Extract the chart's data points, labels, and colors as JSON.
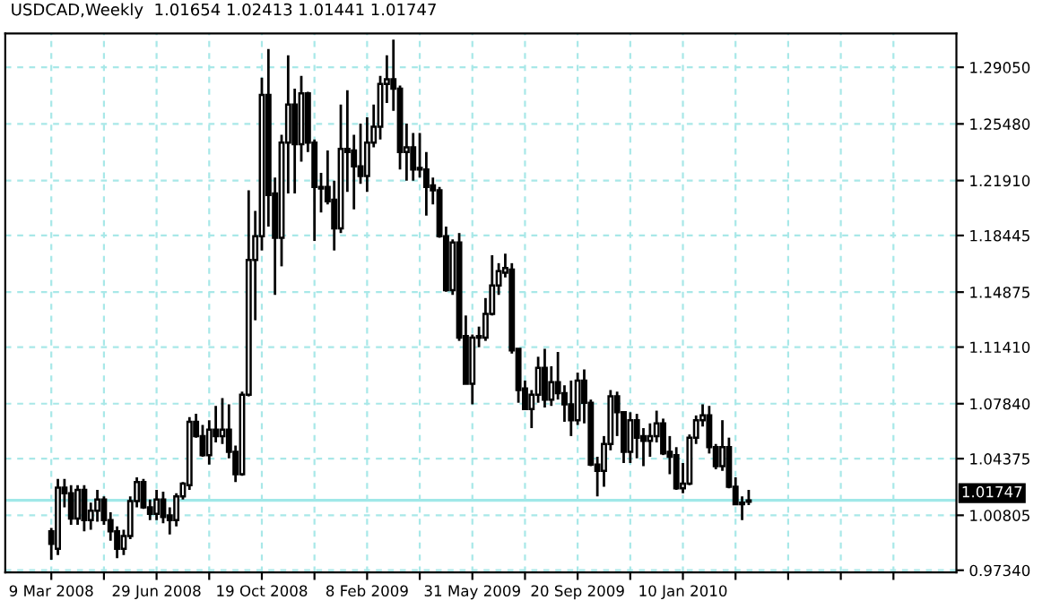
{
  "chart_data": {
    "type": "candlestick",
    "title": "USDCAD,Weekly  1.01654 1.02413 1.01441 1.01747",
    "color": "#000000",
    "grid": true,
    "line_style": "dashed",
    "x": [
      "2008-03-09",
      "2008-03-16",
      "2008-03-23",
      "2008-03-30",
      "2008-04-06",
      "2008-04-13",
      "2008-04-20",
      "2008-04-27",
      "2008-05-04",
      "2008-05-11",
      "2008-05-18",
      "2008-05-25",
      "2008-06-01",
      "2008-06-08",
      "2008-06-15",
      "2008-06-22",
      "2008-06-29",
      "2008-07-06",
      "2008-07-13",
      "2008-07-20",
      "2008-07-27",
      "2008-08-03",
      "2008-08-10",
      "2008-08-17",
      "2008-08-24",
      "2008-08-31",
      "2008-09-07",
      "2008-09-14",
      "2008-09-21",
      "2008-09-28",
      "2008-10-05",
      "2008-10-12",
      "2008-10-19",
      "2008-10-26",
      "2008-11-02",
      "2008-11-09",
      "2008-11-16",
      "2008-11-23",
      "2008-11-30",
      "2008-12-07",
      "2008-12-14",
      "2008-12-21",
      "2008-12-28",
      "2009-01-04",
      "2009-01-11",
      "2009-01-18",
      "2009-01-25",
      "2009-02-01",
      "2009-02-08",
      "2009-02-15",
      "2009-02-22",
      "2009-03-01",
      "2009-03-08",
      "2009-03-15",
      "2009-03-22",
      "2009-03-29",
      "2009-04-05",
      "2009-04-12",
      "2009-04-19",
      "2009-04-26",
      "2009-05-03",
      "2009-05-10",
      "2009-05-17",
      "2009-05-24",
      "2009-05-31",
      "2009-06-07",
      "2009-06-14",
      "2009-06-21",
      "2009-06-28",
      "2009-07-05",
      "2009-07-12",
      "2009-07-19",
      "2009-07-26",
      "2009-08-02",
      "2009-08-09",
      "2009-08-16",
      "2009-08-23",
      "2009-08-30",
      "2009-09-06",
      "2009-09-13",
      "2009-09-20",
      "2009-09-27",
      "2009-10-04",
      "2009-10-11",
      "2009-10-18",
      "2009-10-25",
      "2009-11-01",
      "2009-11-08",
      "2009-11-15",
      "2009-11-22",
      "2009-11-29",
      "2009-12-06",
      "2009-12-13",
      "2009-12-20",
      "2009-12-27",
      "2010-01-03",
      "2010-01-10",
      "2010-01-17",
      "2010-01-24",
      "2010-01-31",
      "2010-02-07",
      "2010-02-14",
      "2010-02-21",
      "2010-02-28",
      "2010-03-07",
      "2010-03-14",
      "2010-03-21"
    ],
    "ohlc": [
      [
        0.998,
        1.0,
        0.98,
        0.99
      ],
      [
        0.987,
        1.031,
        0.983,
        1.0255
      ],
      [
        1.0255,
        1.031,
        1.013,
        1.022
      ],
      [
        1.022,
        1.027,
        1.002,
        1.006
      ],
      [
        1.006,
        1.027,
        1.002,
        1.024
      ],
      [
        1.024,
        1.027,
        0.998,
        1.005
      ],
      [
        1.005,
        1.016,
        0.999,
        1.011
      ],
      [
        1.011,
        1.024,
        1.004,
        1.018
      ],
      [
        1.018,
        1.02,
        1.002,
        1.005
      ],
      [
        1.005,
        1.01,
        0.992,
        0.998
      ],
      [
        0.998,
        1.001,
        0.981,
        0.987
      ],
      [
        0.987,
        0.999,
        0.983,
        0.995
      ],
      [
        0.995,
        1.02,
        0.993,
        1.017
      ],
      [
        1.017,
        1.032,
        1.013,
        1.029
      ],
      [
        1.029,
        1.031,
        1.012,
        1.013
      ],
      [
        1.013,
        1.018,
        1.005,
        1.009
      ],
      [
        1.009,
        1.024,
        1.005,
        1.018
      ],
      [
        1.018,
        1.023,
        1.003,
        1.007
      ],
      [
        1.008,
        1.013,
        0.996,
        1.005
      ],
      [
        1.005,
        1.022,
        1.001,
        1.02
      ],
      [
        1.02,
        1.029,
        1.018,
        1.028
      ],
      [
        1.027,
        1.07,
        1.024,
        1.067
      ],
      [
        1.067,
        1.072,
        1.057,
        1.058
      ],
      [
        1.058,
        1.065,
        1.045,
        1.046
      ],
      [
        1.046,
        1.068,
        1.04,
        1.062
      ],
      [
        1.062,
        1.077,
        1.054,
        1.058
      ],
      [
        1.058,
        1.082,
        1.053,
        1.062
      ],
      [
        1.062,
        1.078,
        1.044,
        1.048
      ],
      [
        1.048,
        1.052,
        1.029,
        1.034
      ],
      [
        1.034,
        1.086,
        1.033,
        1.084
      ],
      [
        1.084,
        1.213,
        1.083,
        1.169
      ],
      [
        1.169,
        1.2,
        1.131,
        1.184
      ],
      [
        1.184,
        1.284,
        1.175,
        1.273
      ],
      [
        1.273,
        1.302,
        1.19,
        1.21
      ],
      [
        1.211,
        1.221,
        1.147,
        1.183
      ],
      [
        1.183,
        1.248,
        1.165,
        1.243
      ],
      [
        1.243,
        1.298,
        1.211,
        1.267
      ],
      [
        1.267,
        1.277,
        1.211,
        1.242
      ],
      [
        1.242,
        1.285,
        1.231,
        1.274
      ],
      [
        1.274,
        1.275,
        1.237,
        1.243
      ],
      [
        1.243,
        1.245,
        1.181,
        1.215
      ],
      [
        1.215,
        1.224,
        1.199,
        1.214
      ],
      [
        1.215,
        1.238,
        1.204,
        1.206
      ],
      [
        1.207,
        1.219,
        1.175,
        1.189
      ],
      [
        1.189,
        1.267,
        1.186,
        1.239
      ],
      [
        1.239,
        1.276,
        1.212,
        1.237
      ],
      [
        1.238,
        1.248,
        1.201,
        1.228
      ],
      [
        1.228,
        1.255,
        1.217,
        1.222
      ],
      [
        1.222,
        1.259,
        1.212,
        1.243
      ],
      [
        1.243,
        1.267,
        1.24,
        1.253
      ],
      [
        1.253,
        1.285,
        1.245,
        1.28
      ],
      [
        1.28,
        1.298,
        1.268,
        1.283
      ],
      [
        1.283,
        1.308,
        1.263,
        1.277
      ],
      [
        1.277,
        1.279,
        1.226,
        1.237
      ],
      [
        1.237,
        1.255,
        1.219,
        1.24
      ],
      [
        1.24,
        1.249,
        1.219,
        1.226
      ],
      [
        1.227,
        1.249,
        1.221,
        1.226
      ],
      [
        1.226,
        1.237,
        1.197,
        1.215
      ],
      [
        1.216,
        1.221,
        1.204,
        1.213
      ],
      [
        1.213,
        1.215,
        1.183,
        1.184
      ],
      [
        1.184,
        1.19,
        1.149,
        1.15
      ],
      [
        1.15,
        1.182,
        1.147,
        1.18
      ],
      [
        1.18,
        1.186,
        1.118,
        1.12
      ],
      [
        1.121,
        1.134,
        1.091,
        1.091
      ],
      [
        1.091,
        1.122,
        1.078,
        1.12
      ],
      [
        1.12,
        1.127,
        1.114,
        1.121
      ],
      [
        1.12,
        1.145,
        1.118,
        1.135
      ],
      [
        1.135,
        1.172,
        1.134,
        1.153
      ],
      [
        1.153,
        1.167,
        1.147,
        1.162
      ],
      [
        1.161,
        1.173,
        1.158,
        1.164
      ],
      [
        1.163,
        1.167,
        1.11,
        1.112
      ],
      [
        1.113,
        1.113,
        1.079,
        1.087
      ],
      [
        1.088,
        1.093,
        1.075,
        1.075
      ],
      [
        1.075,
        1.087,
        1.063,
        1.084
      ],
      [
        1.084,
        1.108,
        1.079,
        1.101
      ],
      [
        1.101,
        1.113,
        1.076,
        1.081
      ],
      [
        1.081,
        1.102,
        1.077,
        1.092
      ],
      [
        1.092,
        1.111,
        1.081,
        1.085
      ],
      [
        1.085,
        1.09,
        1.067,
        1.078
      ],
      [
        1.078,
        1.093,
        1.058,
        1.068
      ],
      [
        1.068,
        1.098,
        1.065,
        1.093
      ],
      [
        1.093,
        1.1,
        1.066,
        1.079
      ],
      [
        1.079,
        1.081,
        1.039,
        1.04
      ],
      [
        1.04,
        1.045,
        1.02,
        1.036
      ],
      [
        1.036,
        1.058,
        1.026,
        1.053
      ],
      [
        1.053,
        1.087,
        1.049,
        1.083
      ],
      [
        1.083,
        1.086,
        1.058,
        1.073
      ],
      [
        1.073,
        1.073,
        1.041,
        1.048
      ],
      [
        1.048,
        1.073,
        1.041,
        1.068
      ],
      [
        1.068,
        1.072,
        1.044,
        1.057
      ],
      [
        1.058,
        1.063,
        1.039,
        1.055
      ],
      [
        1.055,
        1.066,
        1.045,
        1.058
      ],
      [
        1.058,
        1.074,
        1.054,
        1.066
      ],
      [
        1.066,
        1.069,
        1.046,
        1.047
      ],
      [
        1.048,
        1.058,
        1.034,
        1.045
      ],
      [
        1.046,
        1.051,
        1.024,
        1.025
      ],
      [
        1.025,
        1.041,
        1.022,
        1.028
      ],
      [
        1.028,
        1.059,
        1.027,
        1.057
      ],
      [
        1.057,
        1.071,
        1.053,
        1.068
      ],
      [
        1.068,
        1.078,
        1.064,
        1.071
      ],
      [
        1.071,
        1.077,
        1.047,
        1.051
      ],
      [
        1.051,
        1.053,
        1.037,
        1.039
      ],
      [
        1.039,
        1.068,
        1.036,
        1.051
      ],
      [
        1.051,
        1.057,
        1.025,
        1.026
      ],
      [
        1.026,
        1.032,
        1.015,
        1.015
      ],
      [
        1.016,
        1.02,
        1.005,
        1.015
      ],
      [
        1.01654,
        1.02413,
        1.01441,
        1.01747
      ]
    ],
    "xlim": [
      "2008-01-20",
      "2010-10-28"
    ],
    "xticks": [
      {
        "value": "2008-03-09",
        "label": "9 Mar 2008"
      },
      {
        "value": "2008-05-04",
        "label": null
      },
      {
        "value": "2008-06-29",
        "label": "29 Jun 2008"
      },
      {
        "value": "2008-08-24",
        "label": null
      },
      {
        "value": "2008-10-19",
        "label": "19 Oct 2008"
      },
      {
        "value": "2008-12-14",
        "label": null
      },
      {
        "value": "2009-02-08",
        "label": "8 Feb 2009"
      },
      {
        "value": "2009-04-05",
        "label": null
      },
      {
        "value": "2009-05-31",
        "label": "31 May 2009"
      },
      {
        "value": "2009-07-26",
        "label": null
      },
      {
        "value": "2009-09-20",
        "label": "20 Sep 2009"
      },
      {
        "value": "2009-11-15",
        "label": null
      },
      {
        "value": "2010-01-10",
        "label": "10 Jan 2010"
      },
      {
        "value": "2010-03-07",
        "label": null
      },
      {
        "value": "2010-05-02",
        "label": null
      },
      {
        "value": "2010-06-27",
        "label": null
      },
      {
        "value": "2010-08-22",
        "label": null
      }
    ],
    "ylim": [
      0.972,
      1.3118
    ],
    "yticks": [
      {
        "value": 0.9734,
        "label": "0.97340"
      },
      {
        "value": 1.00805,
        "label": "1.00805"
      },
      1.04375,
      {
        "value": 1.0784,
        "label": "1.07840"
      },
      {
        "value": 1.1141,
        "label": "1.11410"
      },
      1.14875,
      1.18445,
      {
        "value": 1.2191,
        "label": "1.21910"
      },
      {
        "value": 1.2548,
        "label": "1.25480"
      },
      {
        "value": 1.2905,
        "label": "1.29050"
      }
    ],
    "ref_lines": [
      {
        "axis": "y",
        "value": 1.01747,
        "label": "1.01747",
        "color": "#a0e8e8",
        "line_style": "solid"
      }
    ]
  }
}
